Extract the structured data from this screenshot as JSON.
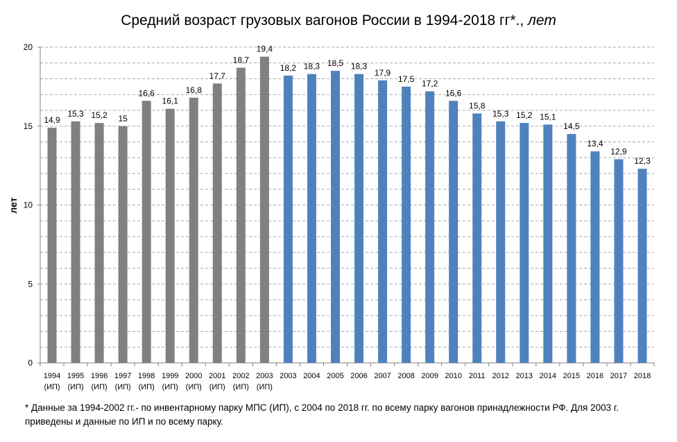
{
  "chart_data": {
    "type": "bar",
    "title": "Средний возраст грузовых вагонов России в 1994-2018 гг*.,",
    "title_unit": "лет",
    "ylabel": "лет",
    "xlabel": "",
    "ylim": [
      0,
      20
    ],
    "yticks": [
      "0",
      "5",
      "10",
      "15",
      "20"
    ],
    "grid": "horizontal dashed",
    "colors": {
      "inventory_park": "#808080",
      "all_park": "#4f81bd"
    },
    "categories": [
      {
        "year": "1994",
        "sub": "(ИП)",
        "value": 14.9,
        "label": "14,9",
        "group": "inventory_park"
      },
      {
        "year": "1995",
        "sub": "(ИП)",
        "value": 15.3,
        "label": "15,3",
        "group": "inventory_park"
      },
      {
        "year": "1996",
        "sub": "(ИП)",
        "value": 15.2,
        "label": "15,2",
        "group": "inventory_park"
      },
      {
        "year": "1997",
        "sub": "(ИП)",
        "value": 15.0,
        "label": "15",
        "group": "inventory_park"
      },
      {
        "year": "1998",
        "sub": "(ИП)",
        "value": 16.6,
        "label": "16,6",
        "group": "inventory_park"
      },
      {
        "year": "1999",
        "sub": "(ИП)",
        "value": 16.1,
        "label": "16,1",
        "group": "inventory_park"
      },
      {
        "year": "2000",
        "sub": "(ИП)",
        "value": 16.8,
        "label": "16,8",
        "group": "inventory_park"
      },
      {
        "year": "2001",
        "sub": "(ИП)",
        "value": 17.7,
        "label": "17,7",
        "group": "inventory_park"
      },
      {
        "year": "2002",
        "sub": "(ИП)",
        "value": 18.7,
        "label": "18,7",
        "group": "inventory_park"
      },
      {
        "year": "2003",
        "sub": "(ИП)",
        "value": 19.4,
        "label": "19,4",
        "group": "inventory_park"
      },
      {
        "year": "2003",
        "sub": "",
        "value": 18.2,
        "label": "18,2",
        "group": "all_park"
      },
      {
        "year": "2004",
        "sub": "",
        "value": 18.3,
        "label": "18,3",
        "group": "all_park"
      },
      {
        "year": "2005",
        "sub": "",
        "value": 18.5,
        "label": "18,5",
        "group": "all_park"
      },
      {
        "year": "2006",
        "sub": "",
        "value": 18.3,
        "label": "18,3",
        "group": "all_park"
      },
      {
        "year": "2007",
        "sub": "",
        "value": 17.9,
        "label": "17,9",
        "group": "all_park"
      },
      {
        "year": "2008",
        "sub": "",
        "value": 17.5,
        "label": "17,5",
        "group": "all_park"
      },
      {
        "year": "2009",
        "sub": "",
        "value": 17.2,
        "label": "17,2",
        "group": "all_park"
      },
      {
        "year": "2010",
        "sub": "",
        "value": 16.6,
        "label": "16,6",
        "group": "all_park"
      },
      {
        "year": "2011",
        "sub": "",
        "value": 15.8,
        "label": "15,8",
        "group": "all_park"
      },
      {
        "year": "2012",
        "sub": "",
        "value": 15.3,
        "label": "15,3",
        "group": "all_park"
      },
      {
        "year": "2013",
        "sub": "",
        "value": 15.2,
        "label": "15,2",
        "group": "all_park"
      },
      {
        "year": "2014",
        "sub": "",
        "value": 15.1,
        "label": "15,1",
        "group": "all_park"
      },
      {
        "year": "2015",
        "sub": "",
        "value": 14.5,
        "label": "14,5",
        "group": "all_park"
      },
      {
        "year": "2016",
        "sub": "",
        "value": 13.4,
        "label": "13,4",
        "group": "all_park"
      },
      {
        "year": "2017",
        "sub": "",
        "value": 12.9,
        "label": "12,9",
        "group": "all_park"
      },
      {
        "year": "2018",
        "sub": "",
        "value": 12.3,
        "label": "12,3",
        "group": "all_park"
      }
    ]
  },
  "footnote": {
    "line1": "* Данные за 1994-2002  гг.- по инвентарному парку МПС (ИП), с 2004  по 2018  гг. по всему парку вагонов принадлежности РФ. Для 2003  г.",
    "line2": "приведены и данные по ИП и по всему парку."
  }
}
